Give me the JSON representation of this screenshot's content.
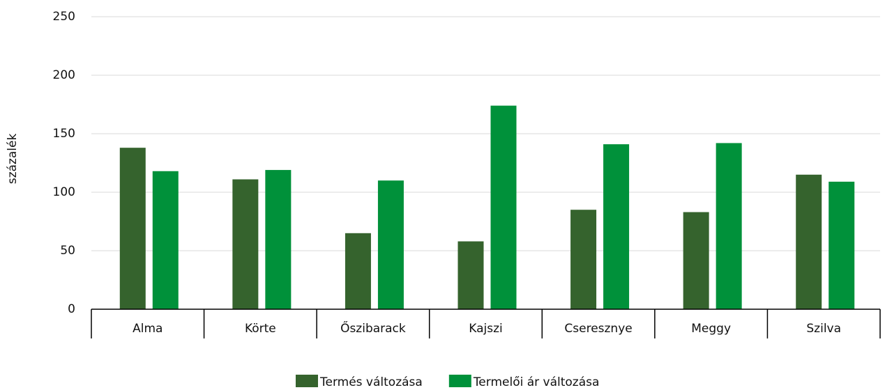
{
  "chart_data": {
    "type": "bar",
    "y_label": "százalék",
    "categories": [
      "Alma",
      "Körte",
      "Őszibarack",
      "Kajszi",
      "Cseresznye",
      "Meggy",
      "Szilva"
    ],
    "series": [
      {
        "name": "Termés változása",
        "color": "#35632d",
        "values": [
          138,
          111,
          65,
          58,
          85,
          83,
          115
        ]
      },
      {
        "name": "Termelői ár változása",
        "color": "#00913a",
        "values": [
          118,
          119,
          110,
          174,
          141,
          142,
          109
        ]
      }
    ],
    "ylim": [
      0,
      250
    ],
    "yticks": [
      0,
      50,
      100,
      150,
      200,
      250
    ],
    "grid": true,
    "legend": "bottom"
  }
}
